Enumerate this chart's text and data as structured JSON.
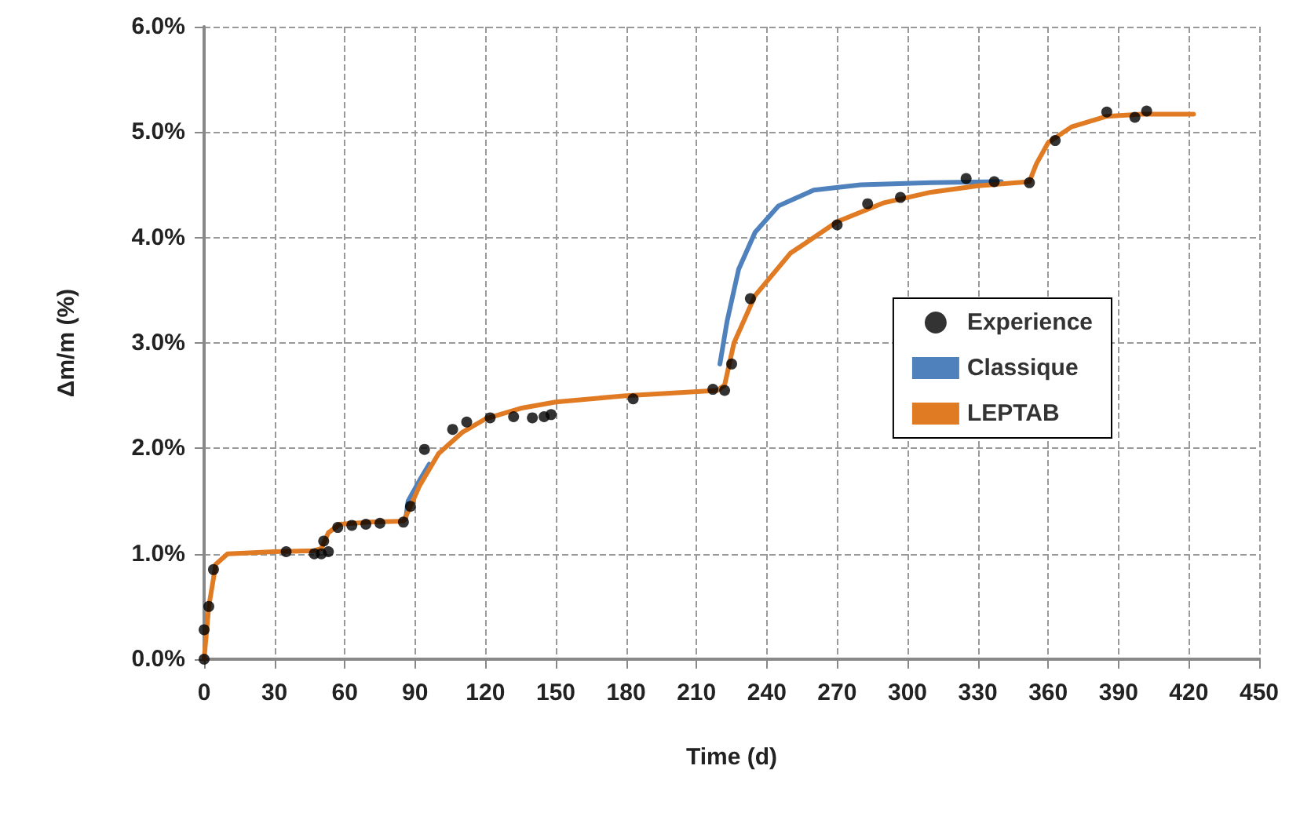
{
  "chart_data": {
    "type": "line",
    "xlabel": "Time (d)",
    "ylabel": "Δm/m (%)",
    "xlim": [
      0,
      450
    ],
    "xticks": [
      0,
      30,
      60,
      90,
      120,
      150,
      180,
      210,
      240,
      270,
      300,
      330,
      360,
      390,
      420,
      450
    ],
    "ylim": [
      0,
      6
    ],
    "yticks": [
      {
        "value": 0,
        "label": "0.0%"
      },
      {
        "value": 1,
        "label": "1.0%"
      },
      {
        "value": 2,
        "label": "2.0%"
      },
      {
        "value": 3,
        "label": "3.0%"
      },
      {
        "value": 4,
        "label": "4.0%"
      },
      {
        "value": 5,
        "label": "5.0%"
      },
      {
        "value": 6,
        "label": "6.0%"
      }
    ],
    "grid": true,
    "legend": "right",
    "line_style": "solid",
    "series": [
      {
        "name": "Experience",
        "type": "scatter",
        "marker": "circle",
        "color": "#000000",
        "x": [
          0,
          0,
          2,
          4,
          35,
          47,
          50,
          51,
          53,
          57,
          63,
          69,
          75,
          85,
          88,
          94,
          106,
          112,
          122,
          132,
          140,
          145,
          148,
          183,
          217,
          222,
          225,
          233,
          270,
          283,
          297,
          325,
          337,
          352,
          363,
          385,
          397,
          402
        ],
        "values": [
          0,
          0.28,
          0.5,
          0.85,
          1.02,
          1.0,
          1.0,
          1.12,
          1.02,
          1.25,
          1.27,
          1.28,
          1.29,
          1.3,
          1.45,
          1.99,
          2.18,
          2.25,
          2.29,
          2.3,
          2.29,
          2.3,
          2.32,
          2.47,
          2.56,
          2.55,
          2.8,
          3.42,
          4.12,
          4.32,
          4.38,
          4.56,
          4.53,
          4.52,
          4.92,
          5.19,
          5.14,
          5.2
        ]
      },
      {
        "name": "Classique",
        "color": "#4f81bd",
        "x": [
          86,
          87,
          92,
          96,
          150,
          220,
          223,
          228,
          235,
          245,
          260,
          280,
          310,
          340
        ],
        "values": [
          1.33,
          1.5,
          1.7,
          1.85,
          null,
          2.8,
          3.2,
          3.7,
          4.05,
          4.3,
          4.45,
          4.5,
          4.52,
          4.53
        ]
      },
      {
        "name": "LEPTAB",
        "color": "#e07b24",
        "x": [
          0,
          2,
          5,
          10,
          30,
          47,
          50,
          53,
          58,
          70,
          85,
          87,
          92,
          100,
          110,
          120,
          135,
          150,
          180,
          219,
          222,
          226,
          235,
          250,
          270,
          290,
          310,
          330,
          352,
          355,
          360,
          370,
          385,
          400,
          422
        ],
        "values": [
          0,
          0.5,
          0.9,
          1.0,
          1.02,
          1.03,
          1.05,
          1.2,
          1.28,
          1.3,
          1.31,
          1.4,
          1.65,
          1.95,
          2.15,
          2.28,
          2.38,
          2.44,
          2.5,
          2.55,
          2.6,
          3.0,
          3.45,
          3.85,
          4.15,
          4.33,
          4.43,
          4.49,
          4.53,
          4.7,
          4.9,
          5.05,
          5.15,
          5.17,
          5.17
        ]
      }
    ]
  }
}
